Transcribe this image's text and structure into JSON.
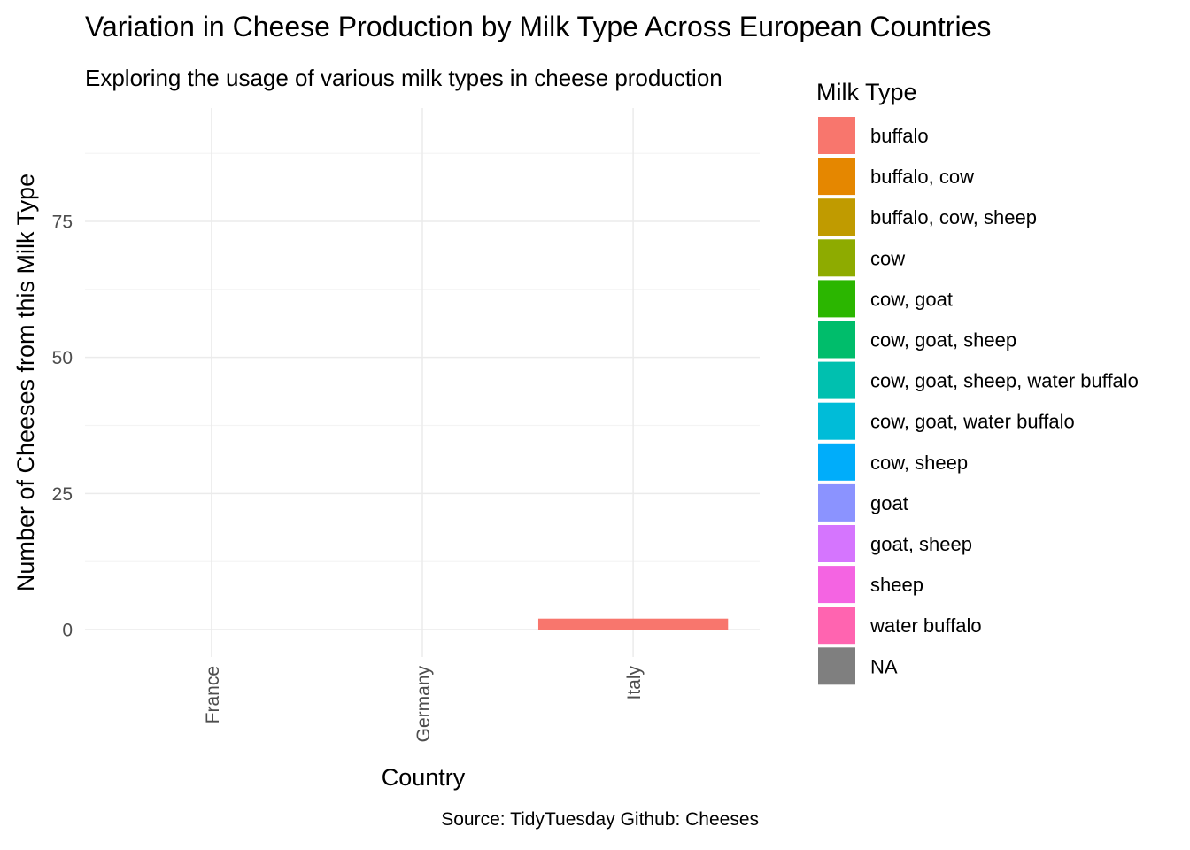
{
  "chart_data": {
    "type": "bar",
    "title": "Variation in Cheese Production by Milk Type Across European Countries",
    "subtitle": "Exploring the usage of various milk types in cheese production",
    "xlabel": "Country",
    "ylabel": "Number of Cheeses from this Milk Type",
    "caption": "Source: TidyTuesday Github: Cheeses",
    "categories": [
      "France",
      "Germany",
      "Italy"
    ],
    "ylim": [
      0,
      93
    ],
    "yticks": [
      0,
      25,
      50,
      75
    ],
    "yticks_minor": [
      12.5,
      37.5,
      62.5,
      87.5
    ],
    "grid": true,
    "bar_layout": "dodge",
    "x_tick_rotation": "vertical",
    "legend": {
      "title": "Milk Type",
      "position": "right",
      "entries": [
        {
          "label": "buffalo",
          "color": "#F8766D"
        },
        {
          "label": "buffalo, cow",
          "color": "#E58700"
        },
        {
          "label": "buffalo, cow, sheep",
          "color": "#C09B00"
        },
        {
          "label": "cow",
          "color": "#8EAB00"
        },
        {
          "label": "cow, goat",
          "color": "#2BB600"
        },
        {
          "label": "cow, goat, sheep",
          "color": "#00BD6B"
        },
        {
          "label": "cow, goat, sheep, water buffalo",
          "color": "#00C0AF"
        },
        {
          "label": "cow, goat, water buffalo",
          "color": "#00BCD8"
        },
        {
          "label": "cow, sheep",
          "color": "#00ADFA"
        },
        {
          "label": "goat",
          "color": "#8B93FF"
        },
        {
          "label": "goat, sheep",
          "color": "#D575FE"
        },
        {
          "label": "sheep",
          "color": "#F464E2"
        },
        {
          "label": "water buffalo",
          "color": "#FF64B0"
        },
        {
          "label": "NA",
          "color": "#7F7F7F"
        }
      ]
    },
    "series": [
      {
        "category": "Italy",
        "milk": "buffalo",
        "value": 2,
        "color": "#F8766D"
      }
    ]
  }
}
